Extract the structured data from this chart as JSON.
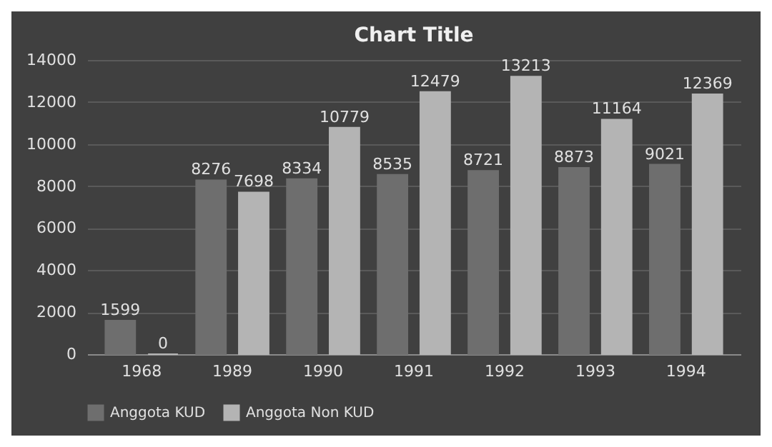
{
  "chart_data": {
    "type": "bar",
    "title": "Chart Title",
    "categories": [
      "1968",
      "1989",
      "1990",
      "1991",
      "1992",
      "1993",
      "1994"
    ],
    "series": [
      {
        "name": "Anggota KUD",
        "color": "#6e6e6e",
        "values": [
          1599,
          8276,
          8334,
          8535,
          8721,
          8873,
          9021
        ]
      },
      {
        "name": "Anggota Non KUD",
        "color": "#b4b4b4",
        "values": [
          0,
          7698,
          10779,
          12479,
          13213,
          11164,
          12369
        ]
      }
    ],
    "ylim": [
      0,
      14000
    ],
    "yticks": [
      0,
      2000,
      4000,
      6000,
      8000,
      10000,
      12000,
      14000
    ],
    "grid": "y",
    "legend": "bottom",
    "data_labels": true
  }
}
